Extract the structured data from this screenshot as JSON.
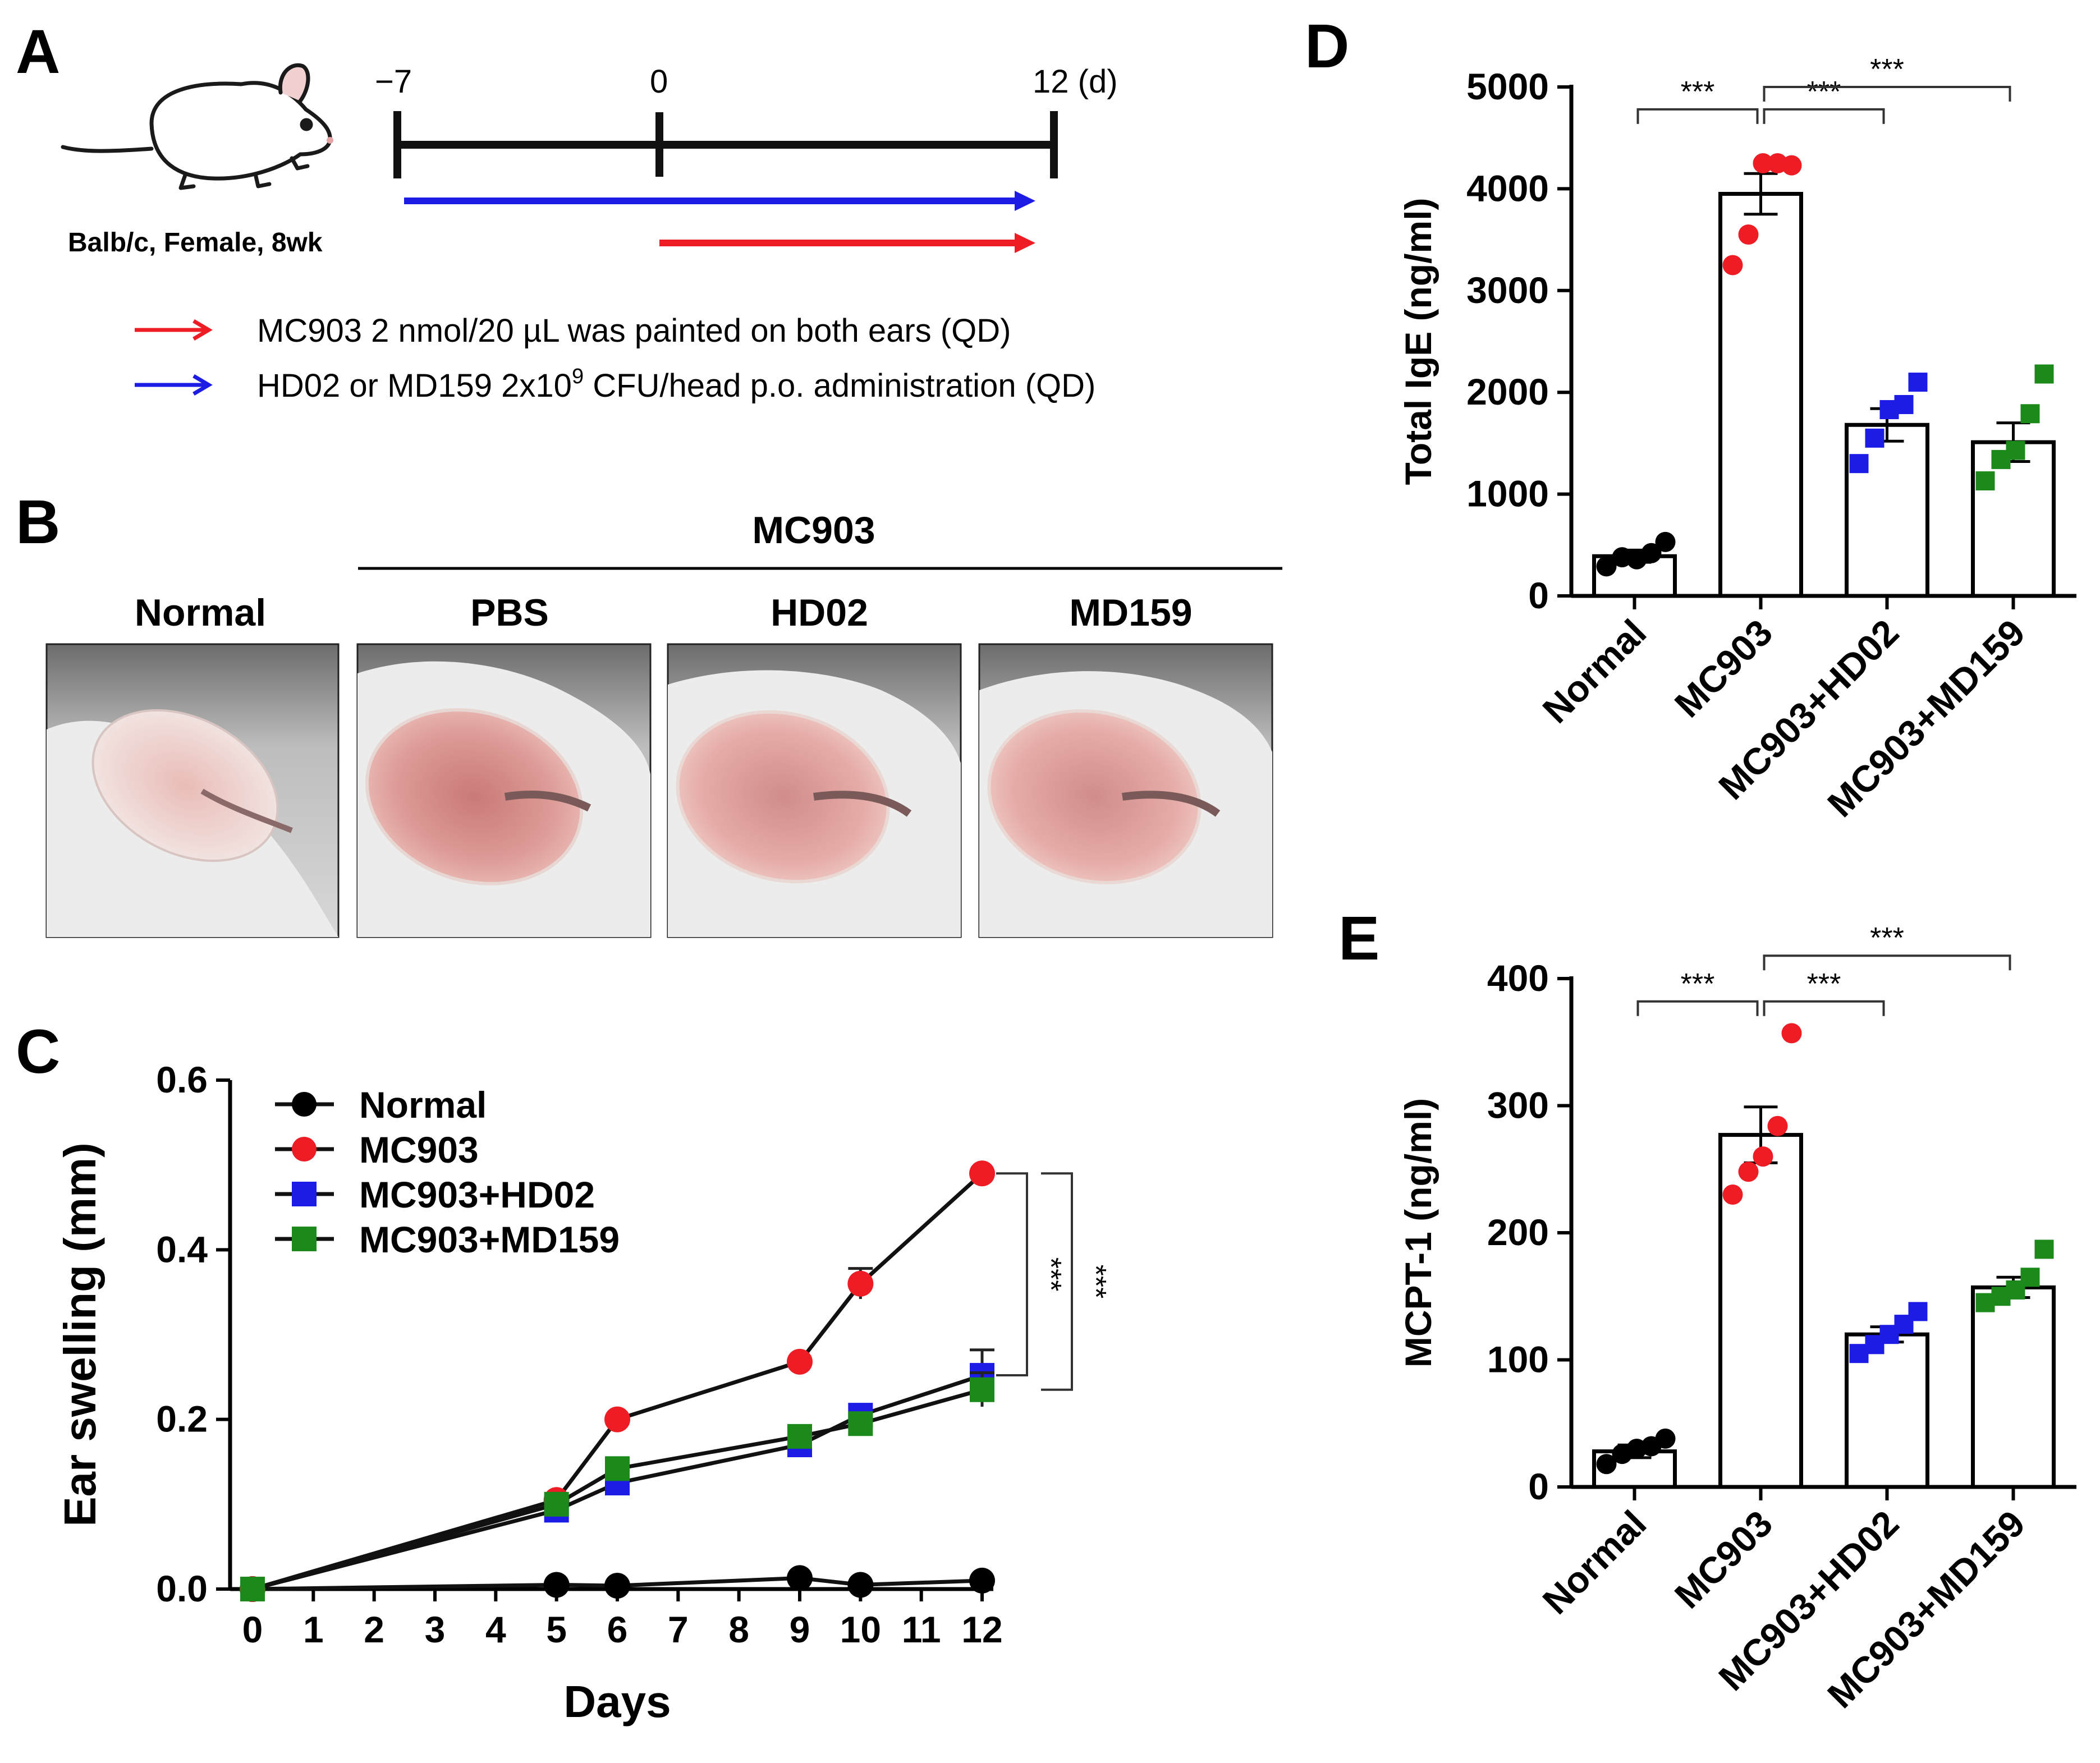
{
  "panel_labels": {
    "a": "A",
    "b": "B",
    "c": "C",
    "d": "D",
    "e": "E"
  },
  "panel_a": {
    "mouse_caption": "Balb/c, Female, 8wk",
    "timeline_ticks": [
      "−7",
      "0",
      "12 (d)"
    ],
    "legend": [
      {
        "arrow_color": "#ee1c25",
        "text": "MC903 2 nmol/20 µL was painted on both ears (QD)"
      },
      {
        "arrow_color": "#1c1ce6",
        "text_before": "HD02 or MD159 2x10",
        "superscript": "9",
        "text_after": " CFU/head p.o. administration (QD)"
      }
    ],
    "colors": {
      "red": "#ee1c25",
      "blue": "#1c1ce6",
      "black": "#000000"
    }
  },
  "panel_b": {
    "group_label": "MC903",
    "photos": [
      {
        "label": "Normal",
        "icon": "ear-photo-normal"
      },
      {
        "label": "PBS",
        "icon": "ear-photo-pbs"
      },
      {
        "label": "HD02",
        "icon": "ear-photo-hd02"
      },
      {
        "label": "MD159",
        "icon": "ear-photo-md159"
      }
    ]
  },
  "chart_data": [
    {
      "id": "C",
      "type": "line",
      "xlabel": "Days",
      "ylabel": "Ear swelling (mm)",
      "x_ticks": [
        0,
        1,
        2,
        3,
        4,
        5,
        6,
        7,
        8,
        9,
        10,
        11,
        12
      ],
      "y_ticks": [
        "0.0",
        "0.2",
        "0.4",
        "0.6"
      ],
      "xlim": [
        0,
        12
      ],
      "ylim": [
        0,
        0.6
      ],
      "series": [
        {
          "name": "Normal",
          "color": "#000000",
          "marker": "circle",
          "x": [
            0,
            5,
            6,
            9,
            10,
            12
          ],
          "y": [
            0,
            0.005,
            0.004,
            0.013,
            0.005,
            0.01
          ],
          "err": [
            0,
            0,
            0,
            0,
            0,
            0
          ]
        },
        {
          "name": "MC903",
          "color": "#ee1c25",
          "marker": "circle",
          "x": [
            0,
            5,
            6,
            9,
            10,
            12
          ],
          "y": [
            0,
            0.105,
            0.2,
            0.268,
            0.36,
            0.49
          ],
          "err": [
            0,
            0,
            0,
            0,
            0.018,
            0
          ]
        },
        {
          "name": "MC903+HD02",
          "color": "#1c1ce6",
          "marker": "square",
          "x": [
            0,
            5,
            6,
            9,
            10,
            12
          ],
          "y": [
            0,
            0.093,
            0.125,
            0.17,
            0.205,
            0.252
          ],
          "err": [
            0,
            0,
            0,
            0,
            0,
            0.03
          ]
        },
        {
          "name": "MC903+MD159",
          "color": "#1b8a1b",
          "marker": "square",
          "x": [
            0,
            5,
            6,
            9,
            10,
            12
          ],
          "y": [
            0,
            0.1,
            0.142,
            0.18,
            0.195,
            0.235
          ],
          "err": [
            0,
            0,
            0,
            0,
            0,
            0.02
          ]
        }
      ],
      "significance": [
        "***",
        "***"
      ]
    },
    {
      "id": "D",
      "type": "bar",
      "ylabel": "Total IgE (ng/ml)",
      "categories": [
        "Normal",
        "MC903",
        "MC903+HD02",
        "MC903+MD159"
      ],
      "values": [
        390,
        3950,
        1680,
        1510
      ],
      "sem": [
        60,
        200,
        160,
        190
      ],
      "points": [
        [
          290,
          380,
          360,
          420,
          530
        ],
        [
          3250,
          3550,
          4250,
          4250,
          4230
        ],
        [
          1300,
          1550,
          1830,
          1880,
          2100
        ],
        [
          1130,
          1340,
          1430,
          1790,
          2180
        ]
      ],
      "point_colors": [
        "#000000",
        "#ee1c25",
        "#1c1ce6",
        "#1b8a1b"
      ],
      "point_markers": [
        "circle",
        "circle",
        "square",
        "square"
      ],
      "ylim": [
        0,
        5000
      ],
      "y_ticks": [
        "0",
        "1000",
        "2000",
        "3000",
        "4000",
        "5000"
      ],
      "significance": [
        {
          "from": 0,
          "to": 1,
          "label": "***",
          "level": 4780
        },
        {
          "from": 1,
          "to": 2,
          "label": "***",
          "level": 4780
        },
        {
          "from": 1,
          "to": 3,
          "label": "***",
          "level": 5000
        }
      ]
    },
    {
      "id": "E",
      "type": "bar",
      "ylabel": "MCPT-1 (ng/ml)",
      "categories": [
        "Normal",
        "MC903",
        "MC903+HD02",
        "MC903+MD159"
      ],
      "values": [
        28,
        277,
        120,
        157
      ],
      "sem": [
        5,
        22,
        6,
        8
      ],
      "points": [
        [
          18,
          26,
          30,
          32,
          38
        ],
        [
          230,
          248,
          260,
          284,
          357
        ],
        [
          105,
          112,
          120,
          128,
          138
        ],
        [
          145,
          150,
          155,
          165,
          187
        ]
      ],
      "point_colors": [
        "#000000",
        "#ee1c25",
        "#1c1ce6",
        "#1b8a1b"
      ],
      "point_markers": [
        "circle",
        "circle",
        "square",
        "square"
      ],
      "ylim": [
        0,
        400
      ],
      "y_ticks": [
        "0",
        "100",
        "200",
        "300",
        "400"
      ],
      "significance": [
        {
          "from": 0,
          "to": 1,
          "label": "***",
          "level": 382
        },
        {
          "from": 1,
          "to": 2,
          "label": "***",
          "level": 382
        },
        {
          "from": 1,
          "to": 3,
          "label": "***",
          "level": 418
        }
      ]
    }
  ]
}
